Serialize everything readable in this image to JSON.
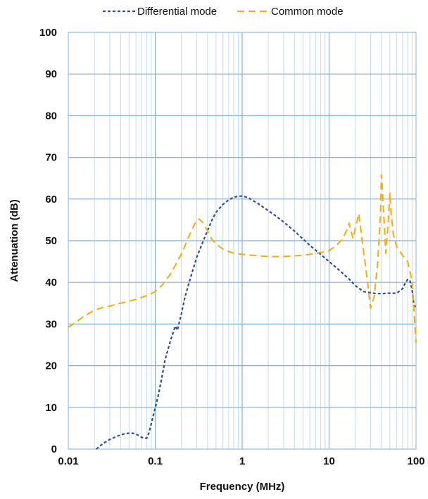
{
  "chart_data": {
    "type": "line",
    "xlabel": "Frequency (MHz)",
    "ylabel": "Attenuation (dB)",
    "x_scale": "log",
    "xlim": [
      0.01,
      100
    ],
    "ylim": [
      0,
      100
    ],
    "x_ticks": [
      0.01,
      0.1,
      1,
      10,
      100
    ],
    "x_tick_labels": [
      "0.01",
      "0.1",
      "1",
      "10",
      "100"
    ],
    "y_ticks": [
      0,
      10,
      20,
      30,
      40,
      50,
      60,
      70,
      80,
      90,
      100
    ],
    "y_tick_labels": [
      "0",
      "10",
      "20",
      "30",
      "40",
      "50",
      "60",
      "70",
      "80",
      "90",
      "100"
    ],
    "grid": true,
    "legend_position": "top-center",
    "series": [
      {
        "name": "Differential mode",
        "color": "#2E4C9A",
        "dash": "short",
        "x": [
          0.021,
          0.025,
          0.03,
          0.035,
          0.04,
          0.045,
          0.05,
          0.055,
          0.06,
          0.065,
          0.07,
          0.075,
          0.08,
          0.085,
          0.09,
          0.095,
          0.1,
          0.11,
          0.12,
          0.13,
          0.15,
          0.17,
          0.18,
          0.2,
          0.22,
          0.25,
          0.3,
          0.35,
          0.4,
          0.45,
          0.5,
          0.6,
          0.7,
          0.8,
          0.9,
          1,
          1.1,
          1.2,
          1.5,
          2,
          2.5,
          3,
          4,
          5,
          6,
          7,
          8,
          10,
          12,
          15,
          17,
          20,
          25,
          30,
          35,
          40,
          50,
          60,
          70,
          75,
          80,
          85,
          90,
          95,
          100
        ],
        "y": [
          0,
          1.3,
          2.3,
          2.9,
          3.4,
          3.7,
          3.8,
          3.8,
          3.6,
          3.2,
          2.8,
          2.6,
          2.6,
          4,
          6,
          8,
          9.8,
          13.5,
          17.5,
          21.5,
          26,
          29.5,
          28.5,
          32.5,
          36.5,
          40.5,
          46,
          49.5,
          52.5,
          55,
          56.8,
          58.7,
          59.8,
          60.4,
          60.7,
          60.7,
          60.5,
          60.2,
          59,
          57.2,
          55.8,
          54.5,
          52.3,
          50.4,
          48.9,
          47.7,
          46.7,
          45,
          43.6,
          41.8,
          40.8,
          39.2,
          37.8,
          37.5,
          37.3,
          37.3,
          37.4,
          37.4,
          38.5,
          39.8,
          40.7,
          40.5,
          38.3,
          34.5,
          34
        ]
      },
      {
        "name": "Common mode",
        "color": "#F0B21C",
        "dash": "long",
        "x": [
          0.01,
          0.012,
          0.015,
          0.02,
          0.025,
          0.03,
          0.04,
          0.05,
          0.06,
          0.07,
          0.08,
          0.09,
          0.1,
          0.12,
          0.15,
          0.2,
          0.25,
          0.3,
          0.32,
          0.35,
          0.4,
          0.45,
          0.5,
          0.6,
          0.7,
          0.8,
          1,
          1.5,
          2,
          3,
          5,
          7,
          10,
          12,
          14,
          16,
          17,
          18,
          19,
          20,
          22,
          24,
          27,
          30,
          33,
          36,
          39,
          40,
          42,
          45,
          48,
          50,
          52,
          55,
          60,
          70,
          80,
          90,
          95,
          100
        ],
        "y": [
          29.2,
          30.3,
          31.8,
          33.3,
          34,
          34.3,
          35,
          35.5,
          35.9,
          36.4,
          36.8,
          37.3,
          37.8,
          39.3,
          42,
          46.8,
          51.5,
          55,
          55.2,
          54.5,
          52.3,
          50.3,
          49.2,
          48,
          47.4,
          47,
          46.7,
          46.4,
          46.2,
          46.2,
          46.5,
          46.9,
          47.6,
          48.8,
          50.2,
          52.5,
          54.2,
          52,
          50.5,
          53,
          56.5,
          50,
          42,
          33.8,
          36.5,
          44,
          56,
          65.8,
          58,
          47,
          55,
          61.5,
          56,
          51.5,
          48.5,
          46.5,
          45,
          40.5,
          33,
          25.5
        ]
      }
    ]
  }
}
